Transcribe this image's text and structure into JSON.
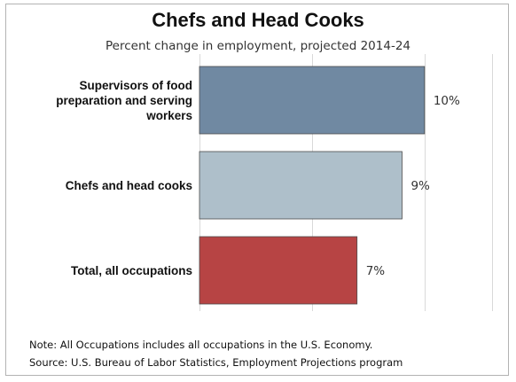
{
  "chart_data": {
    "type": "bar",
    "orientation": "horizontal",
    "title": "Chefs and Head Cooks",
    "subtitle": "Percent change in employment, projected 2014-24",
    "categories": [
      [
        "Supervisors of food",
        "preparation and serving",
        "workers"
      ],
      [
        "Chefs and head cooks"
      ],
      [
        "Total, all occupations"
      ]
    ],
    "values": [
      10,
      9,
      7
    ],
    "value_labels": [
      "10%",
      "9%",
      "7%"
    ],
    "colors": [
      "#7089a2",
      "#aebfca",
      "#b74444"
    ],
    "xlim": [
      0,
      13
    ],
    "grid": true,
    "legend": "none"
  },
  "notes": {
    "note": "Note: All Occupations includes all occupations in the U.S. Economy.",
    "source": "Source: U.S. Bureau of Labor Statistics, Employment Projections program"
  }
}
